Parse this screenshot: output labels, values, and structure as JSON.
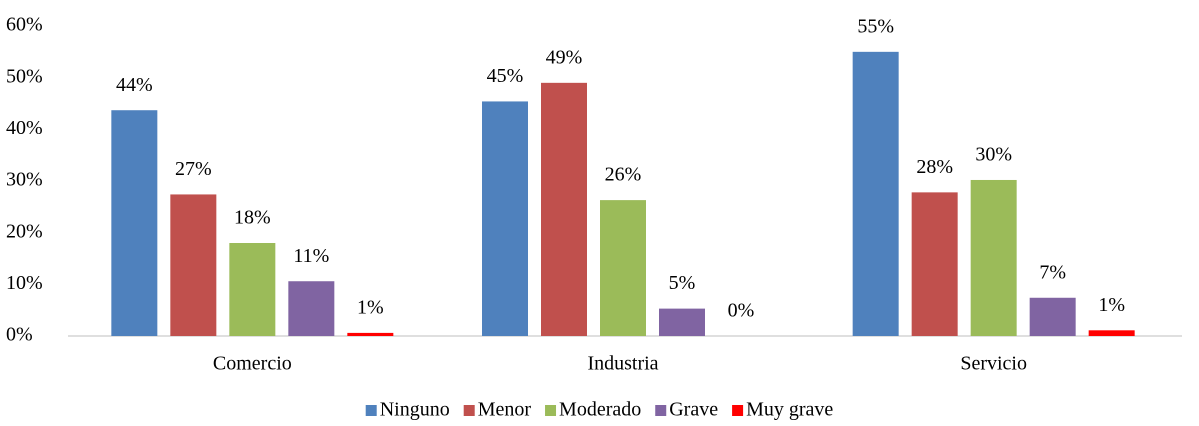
{
  "chart_data": {
    "type": "bar",
    "categories": [
      "Comercio",
      "Industria",
      "Servicio"
    ],
    "series": [
      {
        "name": "Ninguno",
        "color": "#4f81bd",
        "values": [
          43.7,
          45.4,
          55
        ],
        "value_labels": [
          "44%",
          "45%",
          "55%"
        ]
      },
      {
        "name": "Menor",
        "color": "#c0504d",
        "values": [
          27.4,
          49,
          27.8
        ],
        "value_labels": [
          "27%",
          "49%",
          "28%"
        ]
      },
      {
        "name": "Moderado",
        "color": "#9bbb59",
        "values": [
          18,
          26.3,
          30.2
        ],
        "value_labels": [
          "18%",
          "26%",
          "30%"
        ]
      },
      {
        "name": "Grave",
        "color": "#8064a2",
        "values": [
          10.6,
          5.3,
          7.4
        ],
        "value_labels": [
          "11%",
          "5%",
          "7%"
        ]
      },
      {
        "name": "Muy grave",
        "color": "#ff0000",
        "values": [
          0.6,
          0,
          1.1
        ],
        "value_labels": [
          "1%",
          "0%",
          "1%"
        ]
      }
    ],
    "ylim": [
      0,
      60
    ],
    "yticks": [
      {
        "value": 0,
        "label": "0%"
      },
      {
        "value": 10,
        "label": "10%"
      },
      {
        "value": 20,
        "label": "20%"
      },
      {
        "value": 30,
        "label": "30%"
      },
      {
        "value": 40,
        "label": "40%"
      },
      {
        "value": 50,
        "label": "50%"
      },
      {
        "value": 60,
        "label": "60%"
      }
    ],
    "grid": false,
    "legend": "bottom"
  }
}
